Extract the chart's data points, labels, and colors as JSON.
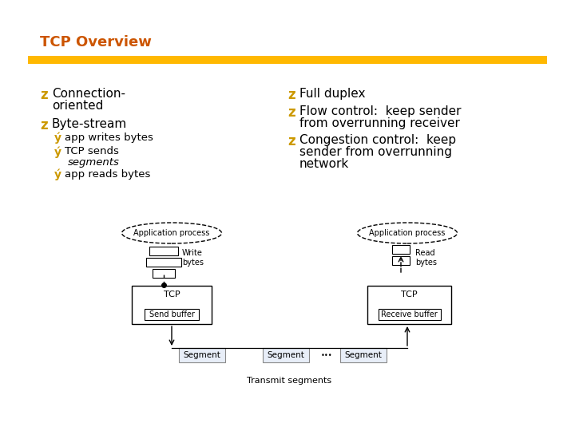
{
  "title": "TCP Overview",
  "title_color": "#CC5500",
  "bar_color": "#FFB800",
  "bg_color": "#FFFFFF",
  "bullet_color": "#CC9900",
  "sub_bullet_color": "#CC9900",
  "text_color": "#000000",
  "diagram": {
    "left_ellipse_label": "Application process",
    "right_ellipse_label": "Application process",
    "write_label": "Write\nbytes",
    "read_label": "Read\nbytes",
    "left_tcp_label": "TCP",
    "right_tcp_label": "TCP",
    "left_buffer_label": "Send buffer",
    "right_buffer_label": "Receive buffer",
    "segment_labels": [
      "Segment",
      "Segment",
      "Segment"
    ],
    "transmit_label": "Transmit segments"
  }
}
